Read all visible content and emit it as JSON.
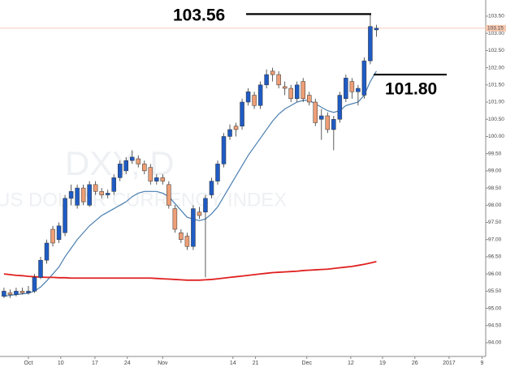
{
  "chart_data": {
    "type": "candlestick",
    "watermark": [
      "DXY, D",
      "US DOLLAR CURRENCY INDEX"
    ],
    "open": [
      95.35,
      95.45,
      95.4,
      95.5,
      95.45,
      95.5,
      95.9,
      96.4,
      97.3,
      97.0,
      97.2,
      98.2,
      98.0,
      98.5,
      98.0,
      98.6,
      98.4,
      98.3,
      98.4,
      98.8,
      99.0,
      99.3,
      99.35,
      99.2,
      99.1,
      98.7,
      98.8,
      98.6,
      97.9,
      97.2,
      97.1,
      96.8,
      97.8,
      97.8,
      98.3,
      98.7,
      99.2,
      100.0,
      100.3,
      100.3,
      101.0,
      101.2,
      100.9,
      101.5,
      101.9,
      101.8,
      101.45,
      101.4,
      101.1,
      101.6,
      101.2,
      101.0,
      100.5,
      100.6,
      100.2,
      100.5,
      101.1,
      101.6,
      101.3,
      101.2,
      102.2,
      103.1
    ],
    "high": [
      95.6,
      95.55,
      95.6,
      95.6,
      95.65,
      96.0,
      96.5,
      97.0,
      97.4,
      97.5,
      98.3,
      98.6,
      98.6,
      98.6,
      98.7,
      98.7,
      98.5,
      98.45,
      98.9,
      99.3,
      99.4,
      99.6,
      99.45,
      99.3,
      99.2,
      98.9,
      98.9,
      98.7,
      98.0,
      97.3,
      97.2,
      98.0,
      97.95,
      98.3,
      98.8,
      99.3,
      100.1,
      100.35,
      100.4,
      101.1,
      101.4,
      101.3,
      101.6,
      101.95,
      102.0,
      101.9,
      101.6,
      101.5,
      101.6,
      101.7,
      101.3,
      101.1,
      100.8,
      100.7,
      100.6,
      101.3,
      101.8,
      101.7,
      101.5,
      102.3,
      103.56,
      103.25
    ],
    "low": [
      95.3,
      95.3,
      95.35,
      95.4,
      95.4,
      95.45,
      95.85,
      96.3,
      96.8,
      96.9,
      97.1,
      98.0,
      97.9,
      98.0,
      97.95,
      98.3,
      98.2,
      98.2,
      98.3,
      98.7,
      98.9,
      99.2,
      99.1,
      98.9,
      98.6,
      98.6,
      98.6,
      97.9,
      97.2,
      96.9,
      96.7,
      96.7,
      97.6,
      95.9,
      98.2,
      98.6,
      99.1,
      99.9,
      100.0,
      100.2,
      100.9,
      100.8,
      100.8,
      101.4,
      101.6,
      101.4,
      101.2,
      101.0,
      101.0,
      101.0,
      100.9,
      100.3,
      99.9,
      100.1,
      99.6,
      100.4,
      101.0,
      101.1,
      100.9,
      101.1,
      102.1,
      102.9
    ],
    "close": [
      95.5,
      95.4,
      95.5,
      95.45,
      95.5,
      95.9,
      96.4,
      96.9,
      96.9,
      97.4,
      98.2,
      98.4,
      98.5,
      98.1,
      98.6,
      98.4,
      98.3,
      98.35,
      98.8,
      99.2,
      99.3,
      99.4,
      99.2,
      99.0,
      98.7,
      98.8,
      98.7,
      98.0,
      97.3,
      97.0,
      96.8,
      97.9,
      97.7,
      98.2,
      98.7,
      99.2,
      100.0,
      100.2,
      100.2,
      101.0,
      101.3,
      100.9,
      101.5,
      101.8,
      101.8,
      101.5,
      101.4,
      101.1,
      101.5,
      101.1,
      101.0,
      100.4,
      100.6,
      100.2,
      100.5,
      101.2,
      101.7,
      101.3,
      101.4,
      102.2,
      103.2,
      103.15
    ],
    "up_color": "#1f5bc4",
    "down_color": "#ee9e76",
    "border_color": "#333",
    "series": [
      {
        "color": "#4a7fb0",
        "values": [
          95.35,
          95.38,
          95.4,
          95.42,
          95.44,
          95.5,
          95.62,
          95.8,
          96.0,
          96.2,
          96.5,
          96.75,
          97.0,
          97.2,
          97.4,
          97.55,
          97.7,
          97.8,
          97.9,
          98.0,
          98.1,
          98.25,
          98.35,
          98.4,
          98.4,
          98.4,
          98.35,
          98.25,
          98.05,
          97.85,
          97.65,
          97.6,
          97.55,
          97.6,
          97.75,
          97.95,
          98.25,
          98.55,
          98.85,
          99.15,
          99.45,
          99.7,
          99.95,
          100.2,
          100.45,
          100.65,
          100.8,
          100.9,
          101.0,
          101.05,
          101.05,
          100.95,
          100.85,
          100.75,
          100.7,
          100.75,
          100.9,
          100.95,
          101.0,
          101.2,
          101.6,
          101.9
        ]
      },
      {
        "color": "#e02020",
        "values": [
          96.0,
          95.98,
          95.96,
          95.95,
          95.93,
          95.92,
          95.91,
          95.9,
          95.9,
          95.89,
          95.89,
          95.88,
          95.88,
          95.88,
          95.88,
          95.88,
          95.88,
          95.88,
          95.88,
          95.88,
          95.88,
          95.88,
          95.88,
          95.88,
          95.88,
          95.87,
          95.86,
          95.85,
          95.84,
          95.83,
          95.82,
          95.82,
          95.82,
          95.83,
          95.84,
          95.86,
          95.88,
          95.9,
          95.92,
          95.94,
          95.96,
          95.98,
          96.0,
          96.02,
          96.04,
          96.05,
          96.06,
          96.07,
          96.08,
          96.1,
          96.11,
          96.12,
          96.13,
          96.14,
          96.16,
          96.18,
          96.2,
          96.22,
          96.25,
          96.28,
          96.32,
          96.36
        ]
      }
    ],
    "xlim": [
      -0.65,
      78.9
    ],
    "xticks": [
      {
        "value": 4,
        "label": "Oct"
      },
      {
        "value": 9.3,
        "label": "10"
      },
      {
        "value": 14.9,
        "label": "17"
      },
      {
        "value": 20.2,
        "label": "24"
      },
      {
        "value": 26,
        "label": "Nov"
      },
      {
        "value": 37.5,
        "label": "14"
      },
      {
        "value": 41.2,
        "label": "21"
      },
      {
        "value": 49.6,
        "label": "Dec"
      },
      {
        "value": 56.8,
        "label": "12"
      },
      {
        "value": 62,
        "label": "19"
      },
      {
        "value": 67.3,
        "label": "26"
      },
      {
        "value": 72.9,
        "label": "2017"
      },
      {
        "value": 78.3,
        "label": "9"
      }
    ],
    "ylim": [
      93.6,
      103.97
    ],
    "yticks": [
      {
        "value": 94,
        "label": "94.00"
      },
      {
        "value": 94.5,
        "label": "94.50"
      },
      {
        "value": 95,
        "label": "95.00"
      },
      {
        "value": 95.5,
        "label": "95.50"
      },
      {
        "value": 96,
        "label": "96.00"
      },
      {
        "value": 96.5,
        "label": "96.50"
      },
      {
        "value": 97,
        "label": "97.00"
      },
      {
        "value": 97.5,
        "label": "97.50"
      },
      {
        "value": 98,
        "label": "98.00"
      },
      {
        "value": 98.5,
        "label": "98.50"
      },
      {
        "value": 99,
        "label": "99.00"
      },
      {
        "value": 99.5,
        "label": "99.50"
      },
      {
        "value": 100,
        "label": "100.00"
      },
      {
        "value": 100.5,
        "label": "100.50"
      },
      {
        "value": 101,
        "label": "101.00"
      },
      {
        "value": 101.5,
        "label": "101.50"
      },
      {
        "value": 102,
        "label": "102.00"
      },
      {
        "value": 102.5,
        "label": "102.50"
      },
      {
        "value": 103,
        "label": "103.00"
      },
      {
        "value": 103.5,
        "label": "103.50"
      }
    ],
    "last_price": {
      "value": 103.15,
      "label": "103.15"
    },
    "annotations": [
      {
        "value": 103.56,
        "label": "103.56"
      },
      {
        "value": 101.8,
        "label": "101.80"
      }
    ]
  }
}
